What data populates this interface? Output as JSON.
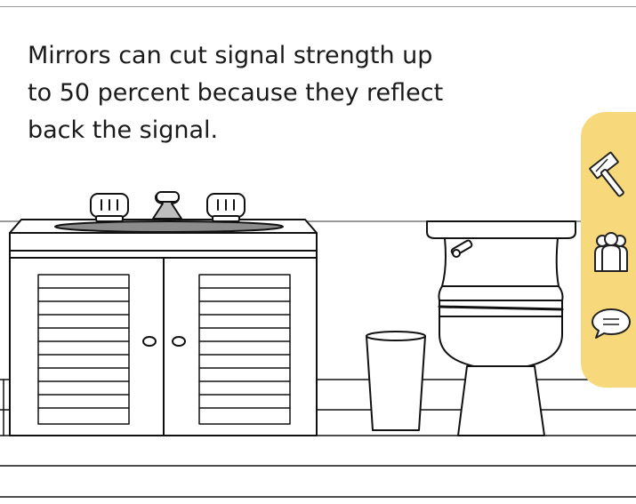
{
  "caption": {
    "text": "Mirrors can cut signal strength up to 50 percent because they reflect back the signal."
  },
  "sidebar": {
    "accent_color": "#f7d87a",
    "buttons": [
      {
        "icon": "hammer-icon"
      },
      {
        "icon": "people-icon"
      },
      {
        "icon": "chat-bubble-icon"
      }
    ]
  }
}
